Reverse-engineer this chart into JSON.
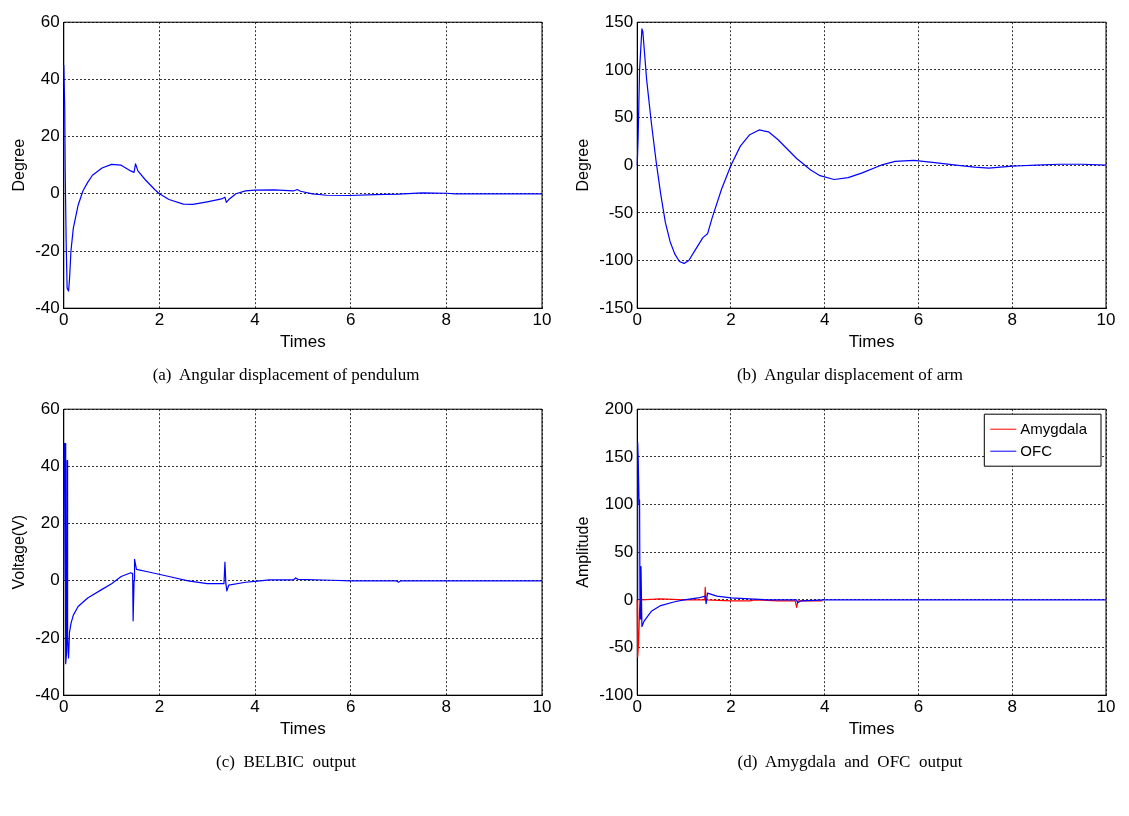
{
  "chart_data": [
    {
      "type": "line",
      "title": "(a)  Angular displacement of pendulum",
      "xlabel": "Times",
      "ylabel": "Degree",
      "xlim": [
        0,
        10
      ],
      "xticks": [
        0,
        2,
        4,
        6,
        8,
        10
      ],
      "ylim": [
        -40,
        60
      ],
      "yticks": [
        -40,
        -20,
        0,
        20,
        40,
        60
      ],
      "grid": true,
      "marker": "none",
      "line_style": "solid",
      "series": [
        {
          "color": "#0000ff",
          "x": [
            0,
            0.02,
            0.03,
            0.05,
            0.07,
            0.1,
            0.12,
            0.15,
            0.2,
            0.3,
            0.4,
            0.5,
            0.6,
            0.8,
            1.0,
            1.2,
            1.4,
            1.47,
            1.5,
            1.55,
            1.7,
            1.9,
            2.0,
            2.2,
            2.5,
            2.7,
            3.0,
            3.3,
            3.37,
            3.4,
            3.45,
            3.6,
            3.8,
            4.0,
            4.4,
            4.8,
            4.88,
            4.95,
            5.2,
            5.5,
            6.0,
            6.5,
            7.0,
            7.5,
            8.0,
            8.2,
            9.0,
            10
          ],
          "values": [
            45,
            30,
            8,
            -17,
            -33,
            -34,
            -30,
            -20,
            -12,
            -4,
            1,
            4,
            6.5,
            9,
            10.3,
            10,
            8,
            7.5,
            10.5,
            8,
            5,
            1.5,
            0,
            -2,
            -3.6,
            -3.7,
            -2.8,
            -1.8,
            -1.2,
            -3,
            -2,
            0,
            1,
            1.3,
            1.4,
            1,
            1.5,
            0.9,
            0,
            -0.5,
            -0.6,
            -0.3,
            -0.1,
            0.3,
            0.2,
            0,
            0,
            0
          ]
        }
      ]
    },
    {
      "type": "line",
      "title": "(b)  Angular displacement of arm",
      "xlabel": "Times",
      "ylabel": "Degree",
      "xlim": [
        0,
        10
      ],
      "xticks": [
        0,
        2,
        4,
        6,
        8,
        10
      ],
      "ylim": [
        -150,
        150
      ],
      "yticks": [
        -150,
        -100,
        -50,
        0,
        50,
        100,
        150
      ],
      "grid": true,
      "marker": "none",
      "line_style": "solid",
      "series": [
        {
          "color": "#0000ff",
          "x": [
            0,
            0.02,
            0.05,
            0.1,
            0.12,
            0.2,
            0.3,
            0.4,
            0.5,
            0.6,
            0.7,
            0.8,
            0.9,
            1.0,
            1.1,
            1.2,
            1.4,
            1.5,
            1.6,
            1.8,
            2.0,
            2.2,
            2.4,
            2.6,
            2.8,
            3.0,
            3.2,
            3.4,
            3.5,
            3.7,
            3.9,
            4.2,
            4.5,
            4.8,
            5.2,
            5.5,
            5.9,
            6.3,
            6.8,
            7.2,
            7.5,
            8.0,
            8.5,
            9.0,
            9.5,
            10
          ],
          "values": [
            0,
            30,
            100,
            143,
            140,
            90,
            45,
            5,
            -30,
            -60,
            -80,
            -93,
            -101,
            -103,
            -100,
            -92,
            -76,
            -72,
            -55,
            -25,
            0,
            20,
            32,
            37,
            35,
            27,
            17,
            7,
            3,
            -5,
            -11,
            -15,
            -13,
            -8,
            0,
            4,
            5,
            3,
            0,
            -2,
            -3,
            -1,
            0,
            1,
            1,
            0
          ]
        }
      ]
    },
    {
      "type": "line",
      "title": "(c)  BELBIC  output",
      "xlabel": "Times",
      "ylabel": "Voltage(V)",
      "xlim": [
        0,
        10
      ],
      "xticks": [
        0,
        2,
        4,
        6,
        8,
        10
      ],
      "ylim": [
        -40,
        60
      ],
      "yticks": [
        -40,
        -20,
        0,
        20,
        40,
        60
      ],
      "grid": true,
      "marker": "none",
      "line_style": "solid",
      "series": [
        {
          "color": "#0000ff",
          "x": [
            0,
            0.01,
            0.03,
            0.04,
            0.06,
            0.07,
            0.08,
            0.1,
            0.12,
            0.15,
            0.2,
            0.3,
            0.5,
            0.8,
            1.0,
            1.2,
            1.4,
            1.44,
            1.45,
            1.47,
            1.48,
            1.52,
            1.8,
            2.2,
            2.6,
            3.0,
            3.35,
            3.37,
            3.39,
            3.41,
            3.45,
            3.8,
            4.0,
            4.3,
            4.8,
            4.85,
            4.9,
            5.6,
            6.0,
            6.95,
            7.0,
            7.05,
            10
          ],
          "values": [
            0,
            48,
            48,
            -29,
            -25,
            42,
            -20,
            -27,
            -18,
            -15,
            -12,
            -9,
            -6,
            -3,
            -1,
            1.5,
            2.8,
            2.5,
            -14,
            0,
            7.5,
            4,
            3,
            1.5,
            0,
            -1,
            -1,
            6.5,
            -1,
            -3.5,
            -1.5,
            -0.5,
            -0.2,
            0.3,
            0.3,
            1,
            0.5,
            0.2,
            0,
            0,
            -0.5,
            0,
            0
          ]
        }
      ]
    },
    {
      "type": "line",
      "title": "(d)  Amygdala  and  OFC  output",
      "xlabel": "Times",
      "ylabel": "Amplitude",
      "xlim": [
        0,
        10
      ],
      "xticks": [
        0,
        2,
        4,
        6,
        8,
        10
      ],
      "ylim": [
        -100,
        200
      ],
      "yticks": [
        -100,
        -50,
        0,
        50,
        100,
        150,
        200
      ],
      "grid": true,
      "marker": "none",
      "line_style": "solid",
      "legend": "top right",
      "series": [
        {
          "name": "Amygdala",
          "color": "#ff0000",
          "x": [
            0,
            0.01,
            0.03,
            0.05,
            0.08,
            0.5,
            1.0,
            1.44,
            1.45,
            1.47,
            2.0,
            2.4,
            2.5,
            3.0,
            3.37,
            3.4,
            3.43,
            3.95
          ],
          "values": [
            0,
            -60,
            -45,
            -10,
            0,
            1,
            0,
            0,
            13,
            0,
            -1,
            -1,
            0,
            -1,
            -1,
            -8,
            -1,
            -1
          ]
        },
        {
          "name": "OFC",
          "color": "#0000ff",
          "x": [
            0,
            0.01,
            0.02,
            0.04,
            0.05,
            0.06,
            0.08,
            0.1,
            0.15,
            0.3,
            0.5,
            0.8,
            1.0,
            1.3,
            1.45,
            1.47,
            1.5,
            1.7,
            2.0,
            2.4,
            2.8,
            3.4,
            3.42,
            3.5,
            4.0,
            10
          ],
          "values": [
            0,
            165,
            150,
            100,
            105,
            -20,
            35,
            -28,
            -22,
            -12,
            -6,
            -2,
            0,
            2,
            4,
            -4,
            7,
            4,
            2,
            1,
            0,
            0,
            -3,
            -1,
            0,
            0
          ]
        }
      ]
    }
  ]
}
